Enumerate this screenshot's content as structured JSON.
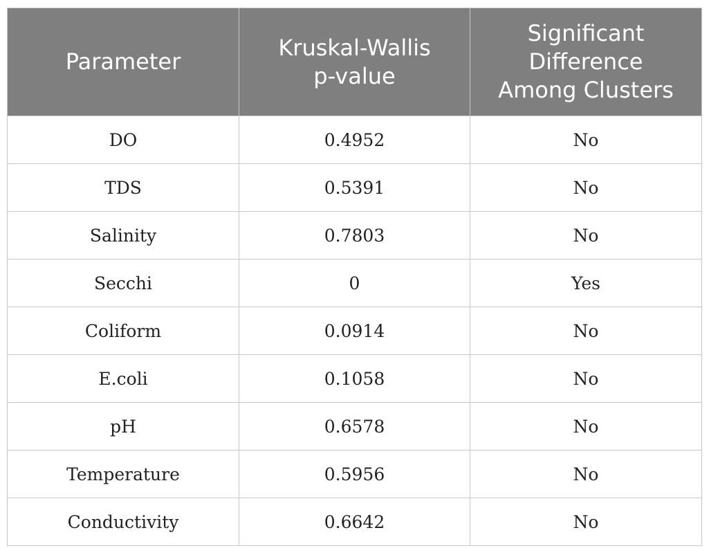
{
  "table": {
    "headers": [
      [
        "Parameter"
      ],
      [
        "Kruskal-Wallis",
        "p-value"
      ],
      [
        "Significant",
        "Difference",
        "Among Clusters"
      ]
    ],
    "rows": [
      [
        "DO",
        "0.4952",
        "No"
      ],
      [
        "TDS",
        "0.5391",
        "No"
      ],
      [
        "Salinity",
        "0.7803",
        "No"
      ],
      [
        "Secchi",
        "0",
        "Yes"
      ],
      [
        "Coliform",
        "0.0914",
        "No"
      ],
      [
        "E.coli",
        "0.1058",
        "No"
      ],
      [
        "pH",
        "0.6578",
        "No"
      ],
      [
        "Temperature",
        "0.5956",
        "No"
      ],
      [
        "Conductivity",
        "0.6642",
        "No"
      ]
    ]
  }
}
